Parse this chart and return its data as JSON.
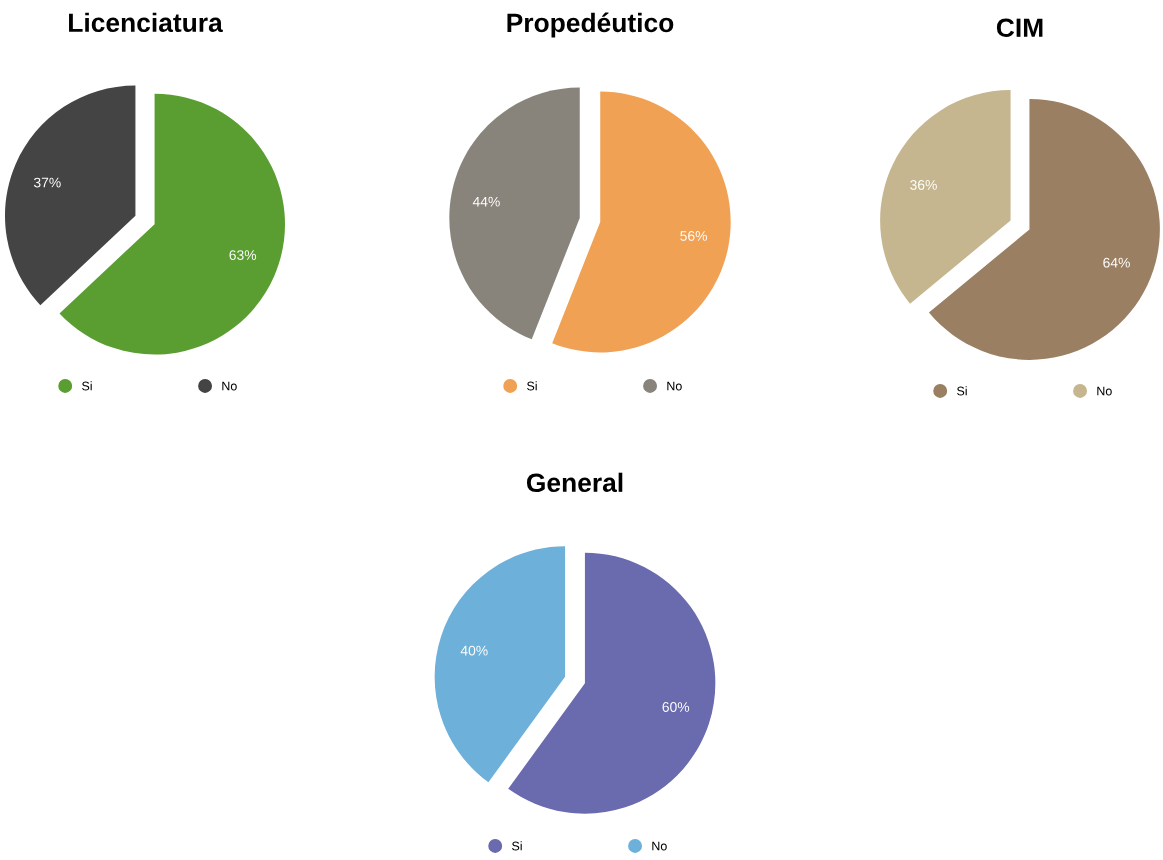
{
  "chart_data": [
    {
      "type": "pie",
      "title": "Licenciatura",
      "categories": [
        "Si",
        "No"
      ],
      "values": [
        63,
        37
      ],
      "colors": [
        "#5a9e32",
        "#444444"
      ],
      "value_labels": [
        "63%",
        "37%"
      ],
      "legend": "bottom"
    },
    {
      "type": "pie",
      "title": "Propedéutico",
      "categories": [
        "Si",
        "No"
      ],
      "values": [
        56,
        44
      ],
      "colors": [
        "#f0a154",
        "#88847c"
      ],
      "value_labels": [
        "56%",
        "44%"
      ],
      "legend": "bottom"
    },
    {
      "type": "pie",
      "title": "CIM",
      "categories": [
        "Si",
        "No"
      ],
      "values": [
        64,
        36
      ],
      "colors": [
        "#9a7f62",
        "#c5b68f"
      ],
      "value_labels": [
        "64%",
        "36%"
      ],
      "legend": "bottom"
    },
    {
      "type": "pie",
      "title": "General",
      "categories": [
        "Si",
        "No"
      ],
      "values": [
        60,
        40
      ],
      "colors": [
        "#6a6aaf",
        "#6db1da"
      ],
      "value_labels": [
        "60%",
        "40%"
      ],
      "legend": "bottom"
    }
  ]
}
